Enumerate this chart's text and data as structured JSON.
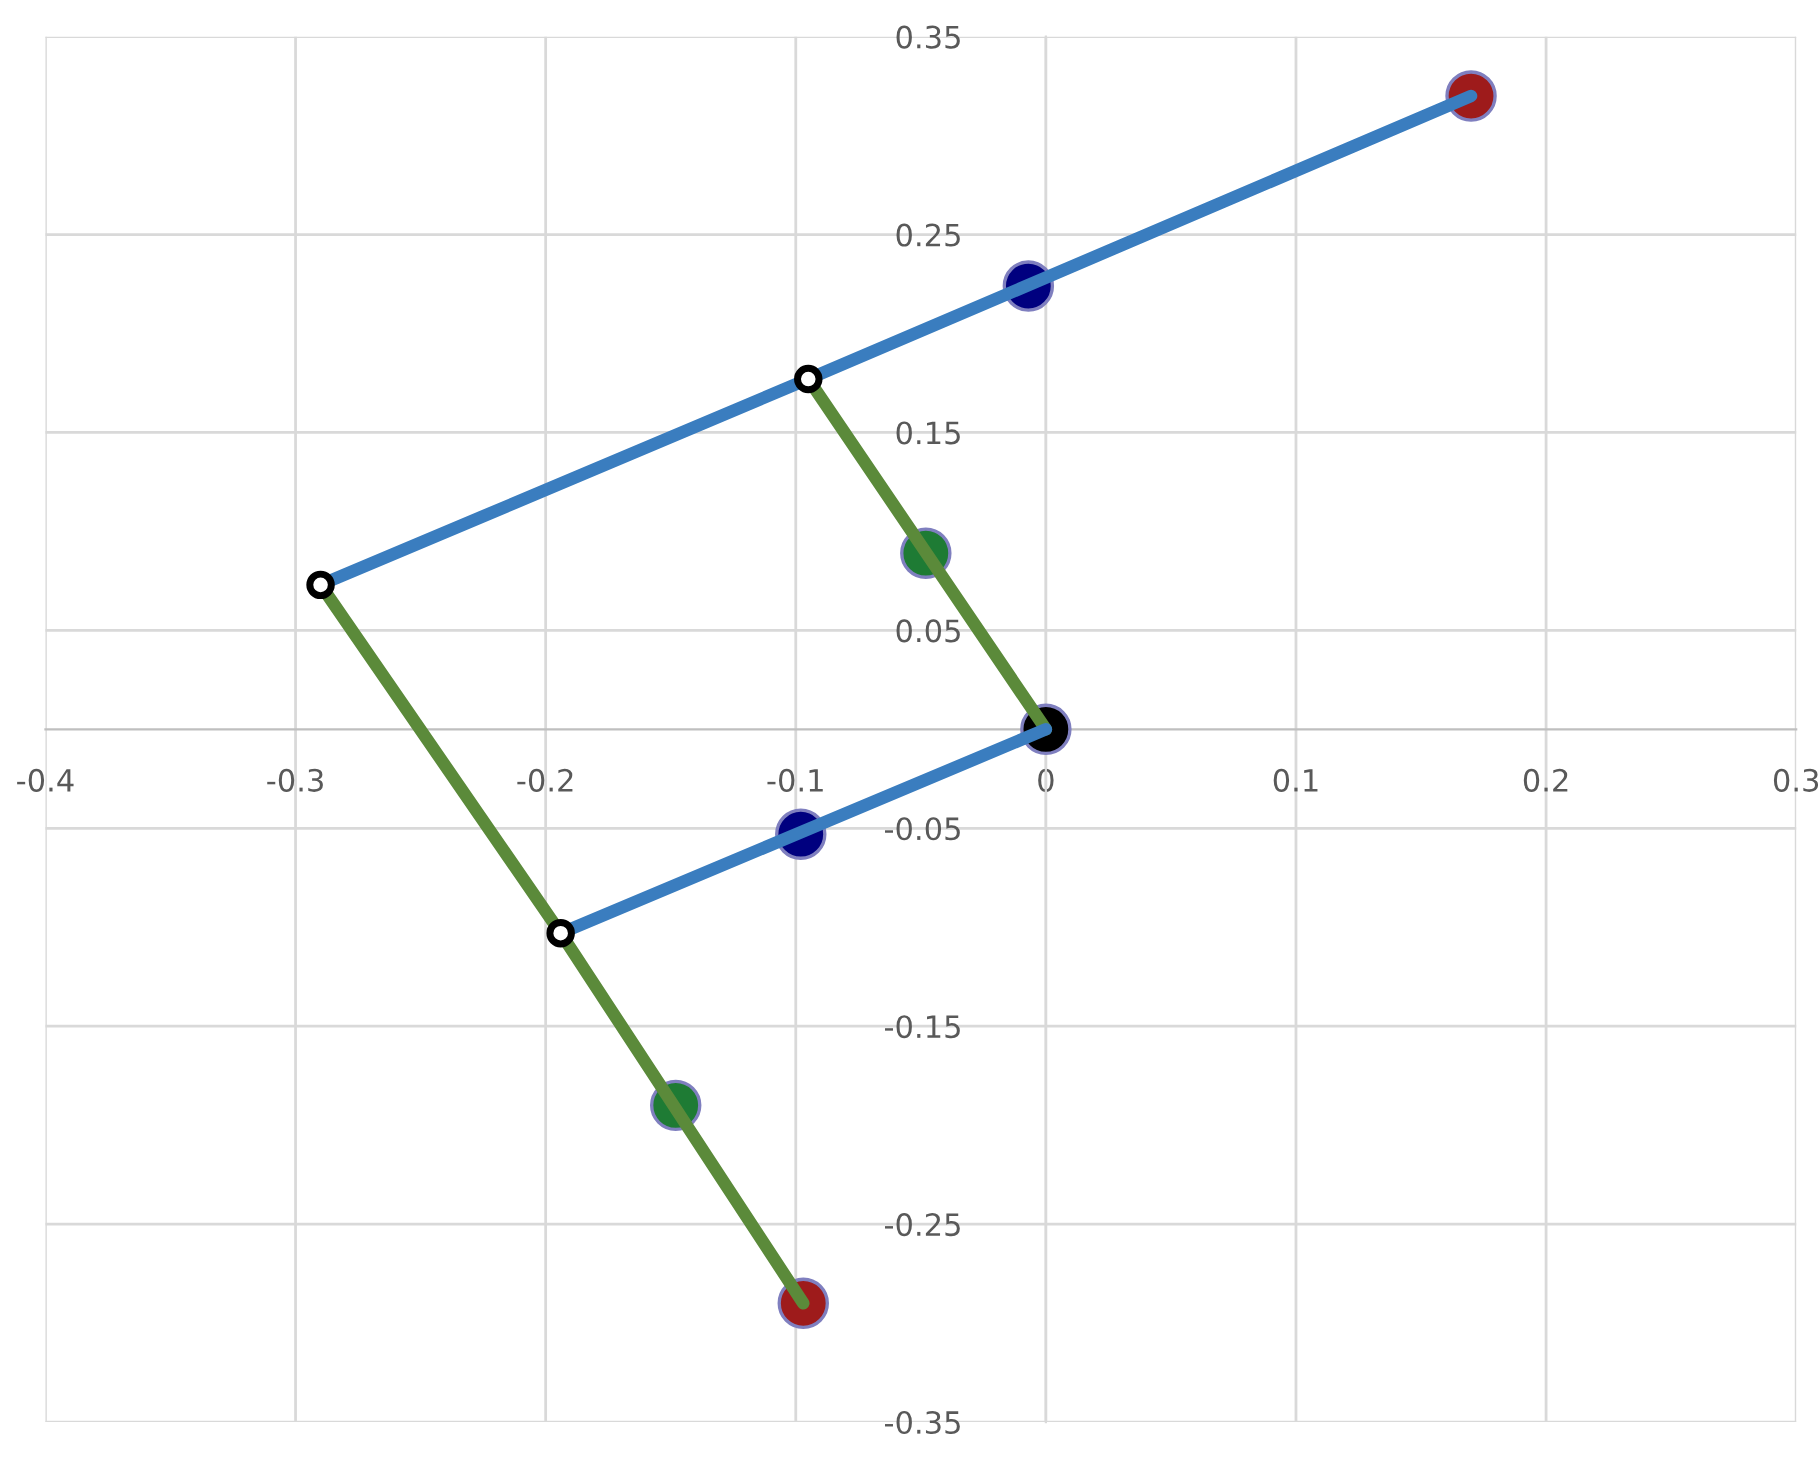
{
  "chart_data": {
    "type": "scatter",
    "xlim": [
      -0.4,
      0.3
    ],
    "ylim": [
      -0.35,
      0.35
    ],
    "xticks": [
      -0.4,
      -0.3,
      -0.2,
      -0.1,
      0,
      0.1,
      0.2,
      0.3
    ],
    "yticks": [
      0.35,
      0.25,
      0.15,
      0.05,
      -0.05,
      -0.15,
      -0.25,
      -0.35
    ],
    "grid": true,
    "series": [
      {
        "type": "line",
        "color": "#3a7dbf",
        "x": [
          -0.29,
          -0.095,
          0.17
        ],
        "values": [
          0.073,
          0.177,
          0.32
        ]
      },
      {
        "type": "line",
        "color": "#5b8a3a",
        "x": [
          -0.095,
          0
        ],
        "values": [
          0.177,
          0
        ]
      },
      {
        "type": "line",
        "color": "#5b8a3a",
        "x": [
          -0.29,
          -0.194,
          -0.097
        ],
        "values": [
          0.073,
          -0.103,
          -0.29
        ]
      },
      {
        "type": "line",
        "color": "#3a7dbf",
        "x": [
          -0.194,
          0
        ],
        "values": [
          -0.103,
          0
        ]
      },
      {
        "type": "scatter",
        "marker": "circle",
        "color": "#000000",
        "x": [
          -0.29,
          -0.095,
          -0.194
        ],
        "values": [
          0.073,
          0.177,
          -0.103
        ]
      },
      {
        "type": "scatter",
        "color": "#00007f",
        "x": [
          -0.007,
          -0.098
        ],
        "values": [
          0.224,
          -0.053
        ]
      },
      {
        "type": "scatter",
        "color": "#1e7b34",
        "x": [
          -0.048,
          -0.148
        ],
        "values": [
          0.089,
          -0.19
        ]
      },
      {
        "type": "scatter",
        "color": "#9e1b1b",
        "x": [
          0.17,
          -0.097
        ],
        "values": [
          0.32,
          -0.29
        ]
      },
      {
        "type": "scatter",
        "color": "#000000",
        "x": [
          0
        ],
        "values": [
          0
        ]
      }
    ]
  }
}
